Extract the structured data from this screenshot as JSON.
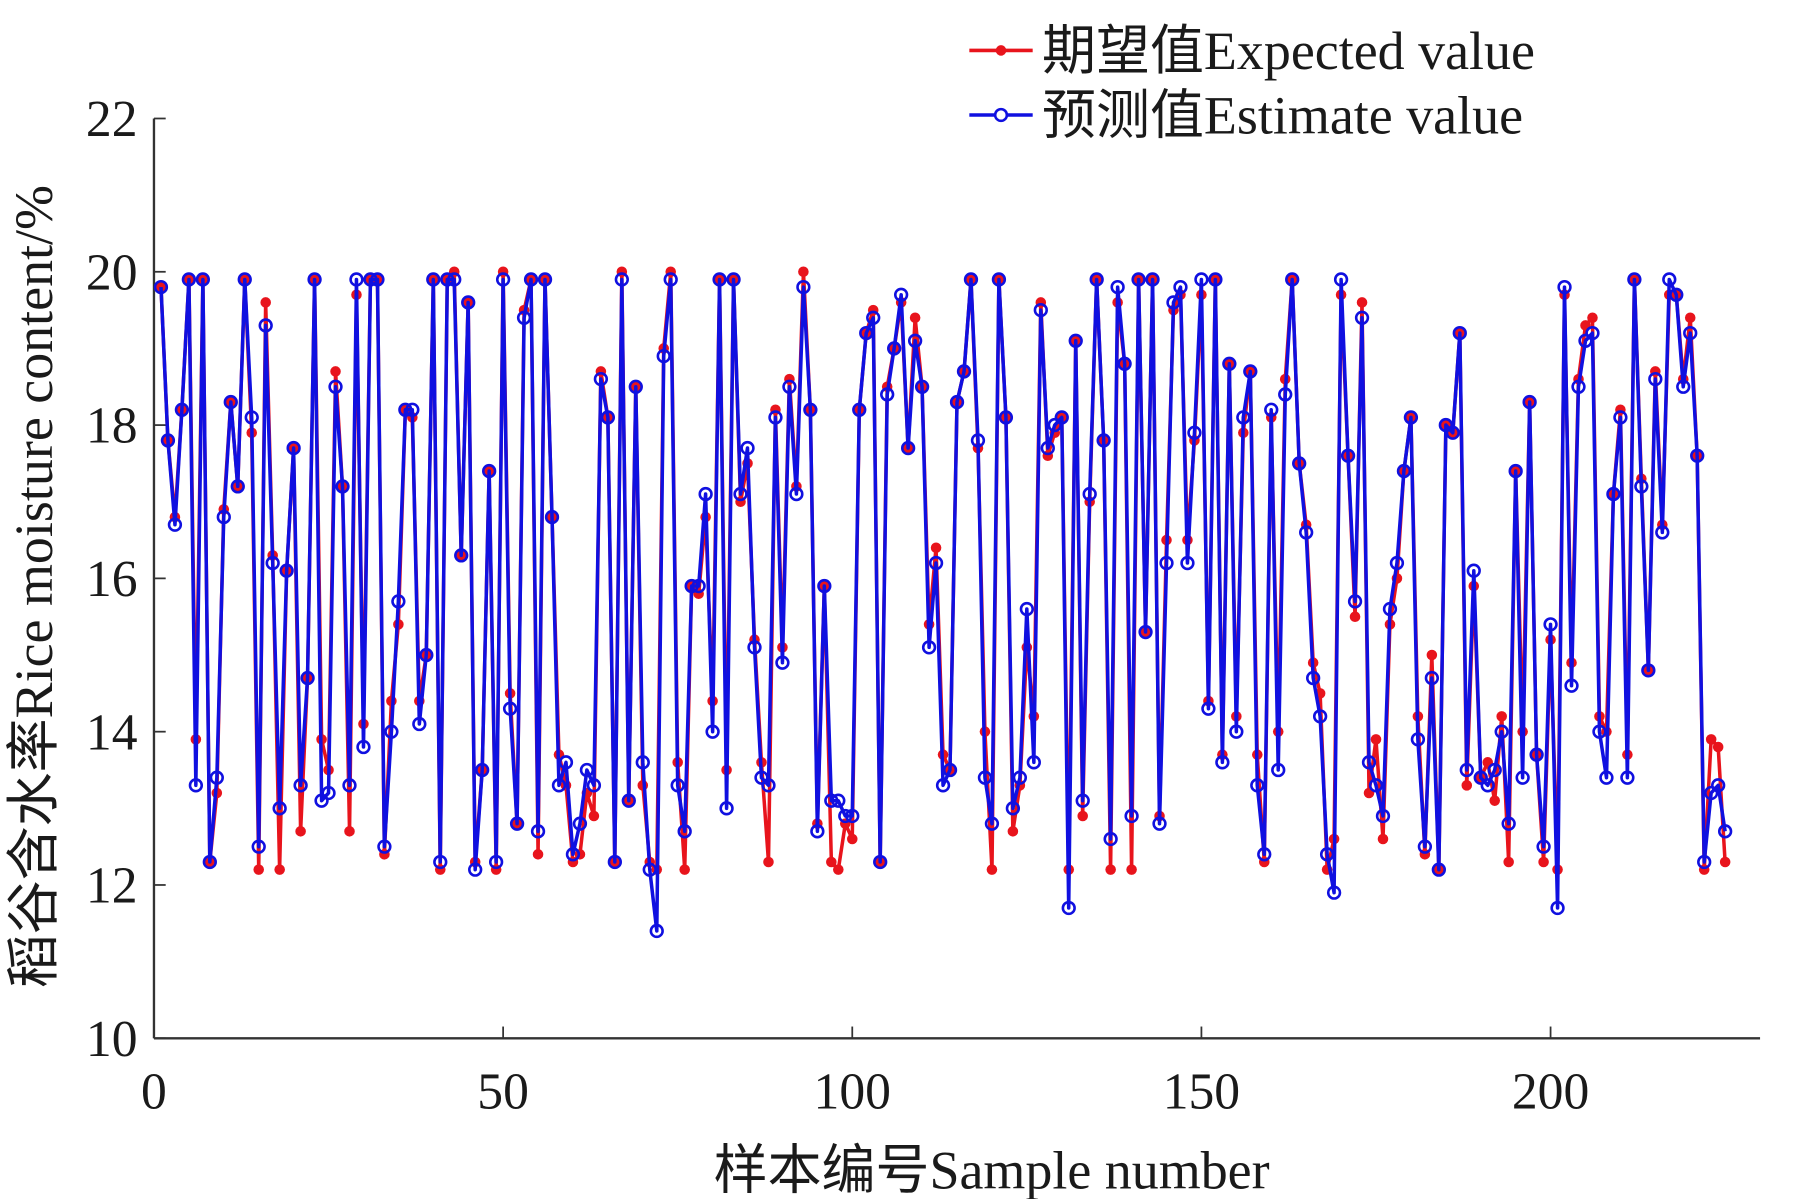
{
  "chart_data": {
    "type": "line",
    "title": "",
    "xlabel": "样本编号Sample number",
    "ylabel": "稻谷含水率Rice moisture content/%",
    "xlim": [
      0,
      230
    ],
    "ylim": [
      10,
      22
    ],
    "xticks": [
      0,
      50,
      100,
      150,
      200
    ],
    "yticks": [
      10,
      12,
      14,
      16,
      18,
      20,
      22
    ],
    "grid": false,
    "legend_position": "top-right",
    "series": [
      {
        "name": "期望值Expected value",
        "color": "#e8141c",
        "marker": "filled-dot",
        "values": [
          19.8,
          17.8,
          16.8,
          18.2,
          19.9,
          13.9,
          19.9,
          12.3,
          13.2,
          16.9,
          18.3,
          17.2,
          19.9,
          17.9,
          12.2,
          19.6,
          16.3,
          12.2,
          16.1,
          17.7,
          12.7,
          14.7,
          19.9,
          13.9,
          13.5,
          18.7,
          17.2,
          12.7,
          19.7,
          14.1,
          19.9,
          19.9,
          12.4,
          14.4,
          15.4,
          18.2,
          18.1,
          14.4,
          15.0,
          19.9,
          12.2,
          19.9,
          20.0,
          16.3,
          19.6,
          12.3,
          13.5,
          17.4,
          12.2,
          20.0,
          14.5,
          12.8,
          19.5,
          19.9,
          12.4,
          19.9,
          16.8,
          13.7,
          13.3,
          12.3,
          12.4,
          13.2,
          12.9,
          18.7,
          18.1,
          12.3,
          20.0,
          13.1,
          18.5,
          13.3,
          12.3,
          12.2,
          19.0,
          20.0,
          13.6,
          12.2,
          15.9,
          15.8,
          16.8,
          14.4,
          19.9,
          13.5,
          19.9,
          17.0,
          17.5,
          15.2,
          13.6,
          12.3,
          18.2,
          15.1,
          18.6,
          17.2,
          20.0,
          18.2,
          12.8,
          15.9,
          12.3,
          12.2,
          12.8,
          12.6,
          18.2,
          19.2,
          19.5,
          12.3,
          18.5,
          19.0,
          19.6,
          17.7,
          19.4,
          18.5,
          15.4,
          16.4,
          13.7,
          13.5,
          18.3,
          18.7,
          19.9,
          17.7,
          14.0,
          12.2,
          19.9,
          18.1,
          12.7,
          13.3,
          15.1,
          14.2,
          19.6,
          17.6,
          17.9,
          18.1,
          12.2,
          19.1,
          12.9,
          17.0,
          19.9,
          17.8,
          12.2,
          19.6,
          18.8,
          12.2,
          19.9,
          15.3,
          19.9,
          12.9,
          16.5,
          19.5,
          19.7,
          16.5,
          17.8,
          19.7,
          14.4,
          19.9,
          13.7,
          18.8,
          14.2,
          17.9,
          18.7,
          13.7,
          12.3,
          18.1,
          14.0,
          18.6,
          19.9,
          17.5,
          16.7,
          14.9,
          14.5,
          12.2,
          12.6,
          19.7,
          17.6,
          15.5,
          19.6,
          13.2,
          13.9,
          12.6,
          15.4,
          16.0,
          17.4,
          18.1,
          14.2,
          12.4,
          15.0,
          12.2,
          18.0,
          17.9,
          19.2,
          13.3,
          15.9,
          13.4,
          13.6,
          13.1,
          14.2,
          12.3,
          17.4,
          14.0,
          18.3,
          13.7,
          12.3,
          15.2,
          12.2,
          19.7,
          14.9,
          18.6,
          19.3,
          19.4,
          14.2,
          14.0,
          17.1,
          18.2,
          13.7,
          19.9,
          17.3,
          14.8,
          18.7,
          16.7,
          19.7,
          19.7,
          18.6,
          19.4,
          17.6,
          12.2,
          13.9,
          13.8,
          12.3
        ]
      },
      {
        "name": "预测值Estimate value",
        "color": "#1010e0",
        "marker": "open-circle",
        "values": [
          19.8,
          17.8,
          16.7,
          18.2,
          19.9,
          13.3,
          19.9,
          12.3,
          13.4,
          16.8,
          18.3,
          17.2,
          19.9,
          18.1,
          12.5,
          19.3,
          16.2,
          13.0,
          16.1,
          17.7,
          13.3,
          14.7,
          19.9,
          13.1,
          13.2,
          18.5,
          17.2,
          13.3,
          19.9,
          13.8,
          19.9,
          19.9,
          12.5,
          14.0,
          15.7,
          18.2,
          18.2,
          14.1,
          15.0,
          19.9,
          12.3,
          19.9,
          19.9,
          16.3,
          19.6,
          12.2,
          13.5,
          17.4,
          12.3,
          19.9,
          14.3,
          12.8,
          19.4,
          19.9,
          12.7,
          19.9,
          16.8,
          13.3,
          13.6,
          12.4,
          12.8,
          13.5,
          13.3,
          18.6,
          18.1,
          12.3,
          19.9,
          13.1,
          18.5,
          13.6,
          12.2,
          11.4,
          18.9,
          19.9,
          13.3,
          12.7,
          15.9,
          15.9,
          17.1,
          14.0,
          19.9,
          13.0,
          19.9,
          17.1,
          17.7,
          15.1,
          13.4,
          13.3,
          18.1,
          14.9,
          18.5,
          17.1,
          19.8,
          18.2,
          12.7,
          15.9,
          13.1,
          13.1,
          12.9,
          12.9,
          18.2,
          19.2,
          19.4,
          12.3,
          18.4,
          19.0,
          19.7,
          17.7,
          19.1,
          18.5,
          15.1,
          16.2,
          13.3,
          13.5,
          18.3,
          18.7,
          19.9,
          17.8,
          13.4,
          12.8,
          19.9,
          18.1,
          13.0,
          13.4,
          15.6,
          13.6,
          19.5,
          17.7,
          18.0,
          18.1,
          11.7,
          19.1,
          13.1,
          17.1,
          19.9,
          17.8,
          12.6,
          19.8,
          18.8,
          12.9,
          19.9,
          15.3,
          19.9,
          12.8,
          16.2,
          19.6,
          19.8,
          16.2,
          17.9,
          19.9,
          14.3,
          19.9,
          13.6,
          18.8,
          14.0,
          18.1,
          18.7,
          13.3,
          12.4,
          18.2,
          13.5,
          18.4,
          19.9,
          17.5,
          16.6,
          14.7,
          14.2,
          12.4,
          11.9,
          19.9,
          17.6,
          15.7,
          19.4,
          13.6,
          13.3,
          12.9,
          15.6,
          16.2,
          17.4,
          18.1,
          13.9,
          12.5,
          14.7,
          12.2,
          18.0,
          17.9,
          19.2,
          13.5,
          16.1,
          13.4,
          13.3,
          13.5,
          14.0,
          12.8,
          17.4,
          13.4,
          18.3,
          13.7,
          12.5,
          15.4,
          11.7,
          19.8,
          14.6,
          18.5,
          19.1,
          19.2,
          14.0,
          13.4,
          17.1,
          18.1,
          13.4,
          19.9,
          17.2,
          14.8,
          18.6,
          16.6,
          19.9,
          19.7,
          18.5,
          19.2,
          17.6,
          12.3,
          13.2,
          13.3,
          12.7
        ]
      }
    ]
  }
}
